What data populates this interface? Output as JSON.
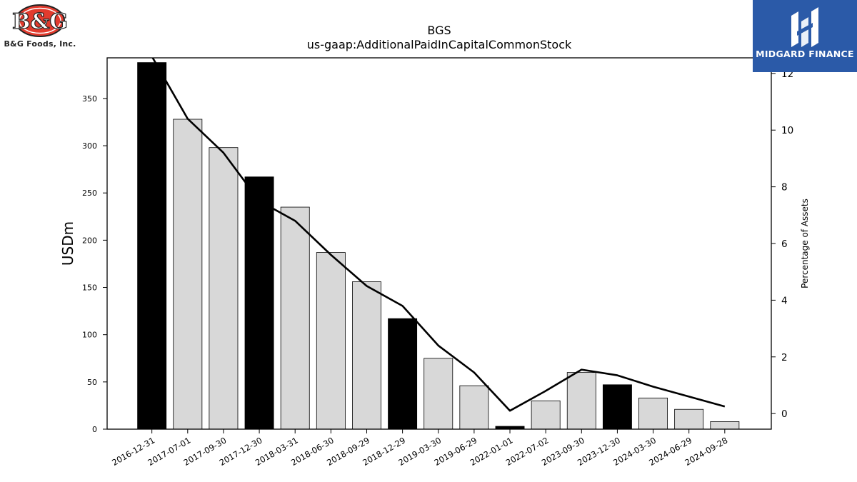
{
  "logos": {
    "left": "B&G Foods, Inc.",
    "right": "MIDGARD FINANCE"
  },
  "chart_data": {
    "type": "bar",
    "title": "BGS",
    "subtitle": "us-gaap:AdditionalPaidInCapitalCommonStock",
    "ylabel": "USDm",
    "y2label": "Percentage of Assets",
    "ylim": [
      0,
      393
    ],
    "y2lim": [
      -0.55,
      12.55
    ],
    "yticks": [
      0,
      50,
      100,
      150,
      200,
      250,
      300,
      350
    ],
    "y2ticks": [
      0,
      2,
      4,
      6,
      8,
      10,
      12
    ],
    "categories": [
      "2016-12-31",
      "2017-07-01",
      "2017-09-30",
      "2017-12-30",
      "2018-03-31",
      "2018-06-30",
      "2018-09-29",
      "2018-12-29",
      "2019-03-30",
      "2019-06-29",
      "2022-01-01",
      "2022-07-02",
      "2023-09-30",
      "2023-12-30",
      "2024-03-30",
      "2024-06-29",
      "2024-09-28"
    ],
    "series": [
      {
        "kind": "bar",
        "axis": "left",
        "values": [
          388,
          328,
          298,
          267,
          235,
          187,
          156,
          117,
          75,
          46,
          3,
          30,
          60,
          47,
          33,
          21,
          8
        ],
        "highlight": [
          true,
          false,
          false,
          true,
          false,
          false,
          false,
          true,
          false,
          false,
          true,
          false,
          false,
          true,
          false,
          false,
          false
        ],
        "color": "#d8d8d8",
        "highlight_color": "#000000"
      },
      {
        "kind": "line",
        "axis": "right",
        "values": [
          12.6,
          10.4,
          9.2,
          7.5,
          6.8,
          5.6,
          4.5,
          3.8,
          2.4,
          1.45,
          0.1,
          0.8,
          1.55,
          1.35,
          0.95,
          0.6,
          0.25
        ],
        "color": "#000000"
      }
    ],
    "grid": false,
    "legend": "none"
  }
}
